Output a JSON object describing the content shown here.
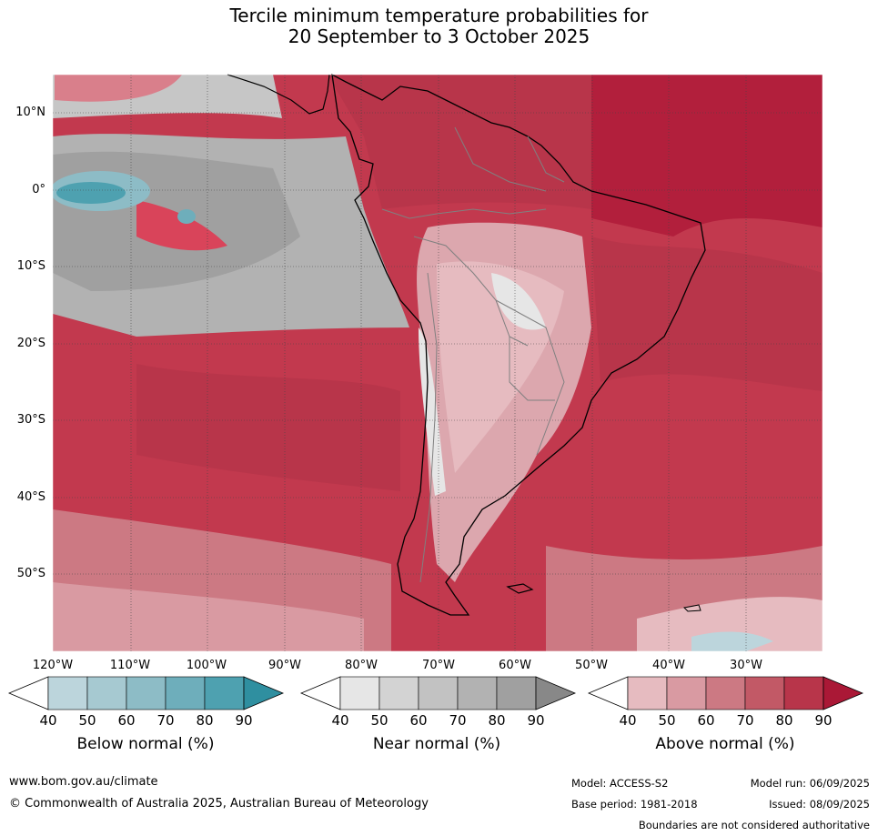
{
  "title": {
    "line1": "Tercile minimum temperature probabilities for",
    "line2": "20 September to 3 October 2025"
  },
  "lat_labels": [
    "10°N",
    "0°",
    "10°S",
    "20°S",
    "30°S",
    "40°S",
    "50°S"
  ],
  "lon_labels": [
    "120°W",
    "110°W",
    "100°W",
    "90°W",
    "80°W",
    "70°W",
    "60°W",
    "50°W",
    "40°W",
    "30°W"
  ],
  "colorbars": [
    {
      "title": "Below normal (%)",
      "ticks": [
        "40",
        "50",
        "60",
        "70",
        "80",
        "90"
      ],
      "colors": [
        "#bcd5dc",
        "#a6c9d1",
        "#8dbcc6",
        "#6eaebb",
        "#4ea1b0",
        "#2f8fa0"
      ]
    },
    {
      "title": "Near normal (%)",
      "ticks": [
        "40",
        "50",
        "60",
        "70",
        "80",
        "90"
      ],
      "colors": [
        "#e6e6e6",
        "#d3d3d3",
        "#c2c2c2",
        "#b2b2b2",
        "#a0a0a0",
        "#888888"
      ]
    },
    {
      "title": "Above normal (%)",
      "ticks": [
        "40",
        "50",
        "60",
        "70",
        "80",
        "90"
      ],
      "colors": [
        "#e6bbc0",
        "#d99aa2",
        "#cc7983",
        "#c25966",
        "#b8354a",
        "#aa1836"
      ]
    }
  ],
  "footer": {
    "website": "www.bom.gov.au/climate",
    "copyright": "© Commonwealth of Australia 2025, Australian Bureau of Meteorology",
    "model": "Model: ACCESS-S2",
    "base_period": "Base period: 1981-2018",
    "model_run": "Model run: 06/09/2025",
    "issued": "Issued: 08/09/2025",
    "disclaimer": "Boundaries are not considered authoritative"
  }
}
